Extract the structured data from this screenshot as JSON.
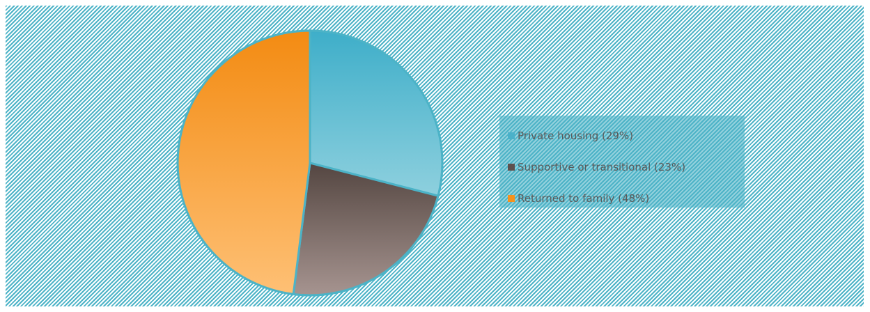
{
  "chart_data": {
    "type": "pie",
    "title": "",
    "categories": [
      "Private housing",
      "Supportive or transitional",
      "Returned to family"
    ],
    "values": [
      29,
      23,
      48
    ],
    "unit": "%",
    "legend_placement": "right",
    "colors": [
      "#4bb1c9",
      "#5e514e",
      "#f5921e"
    ],
    "legend_labels": [
      "Private housing (29%)",
      "Supportive or transitional (23%)",
      "Returned to family (48%)"
    ]
  }
}
